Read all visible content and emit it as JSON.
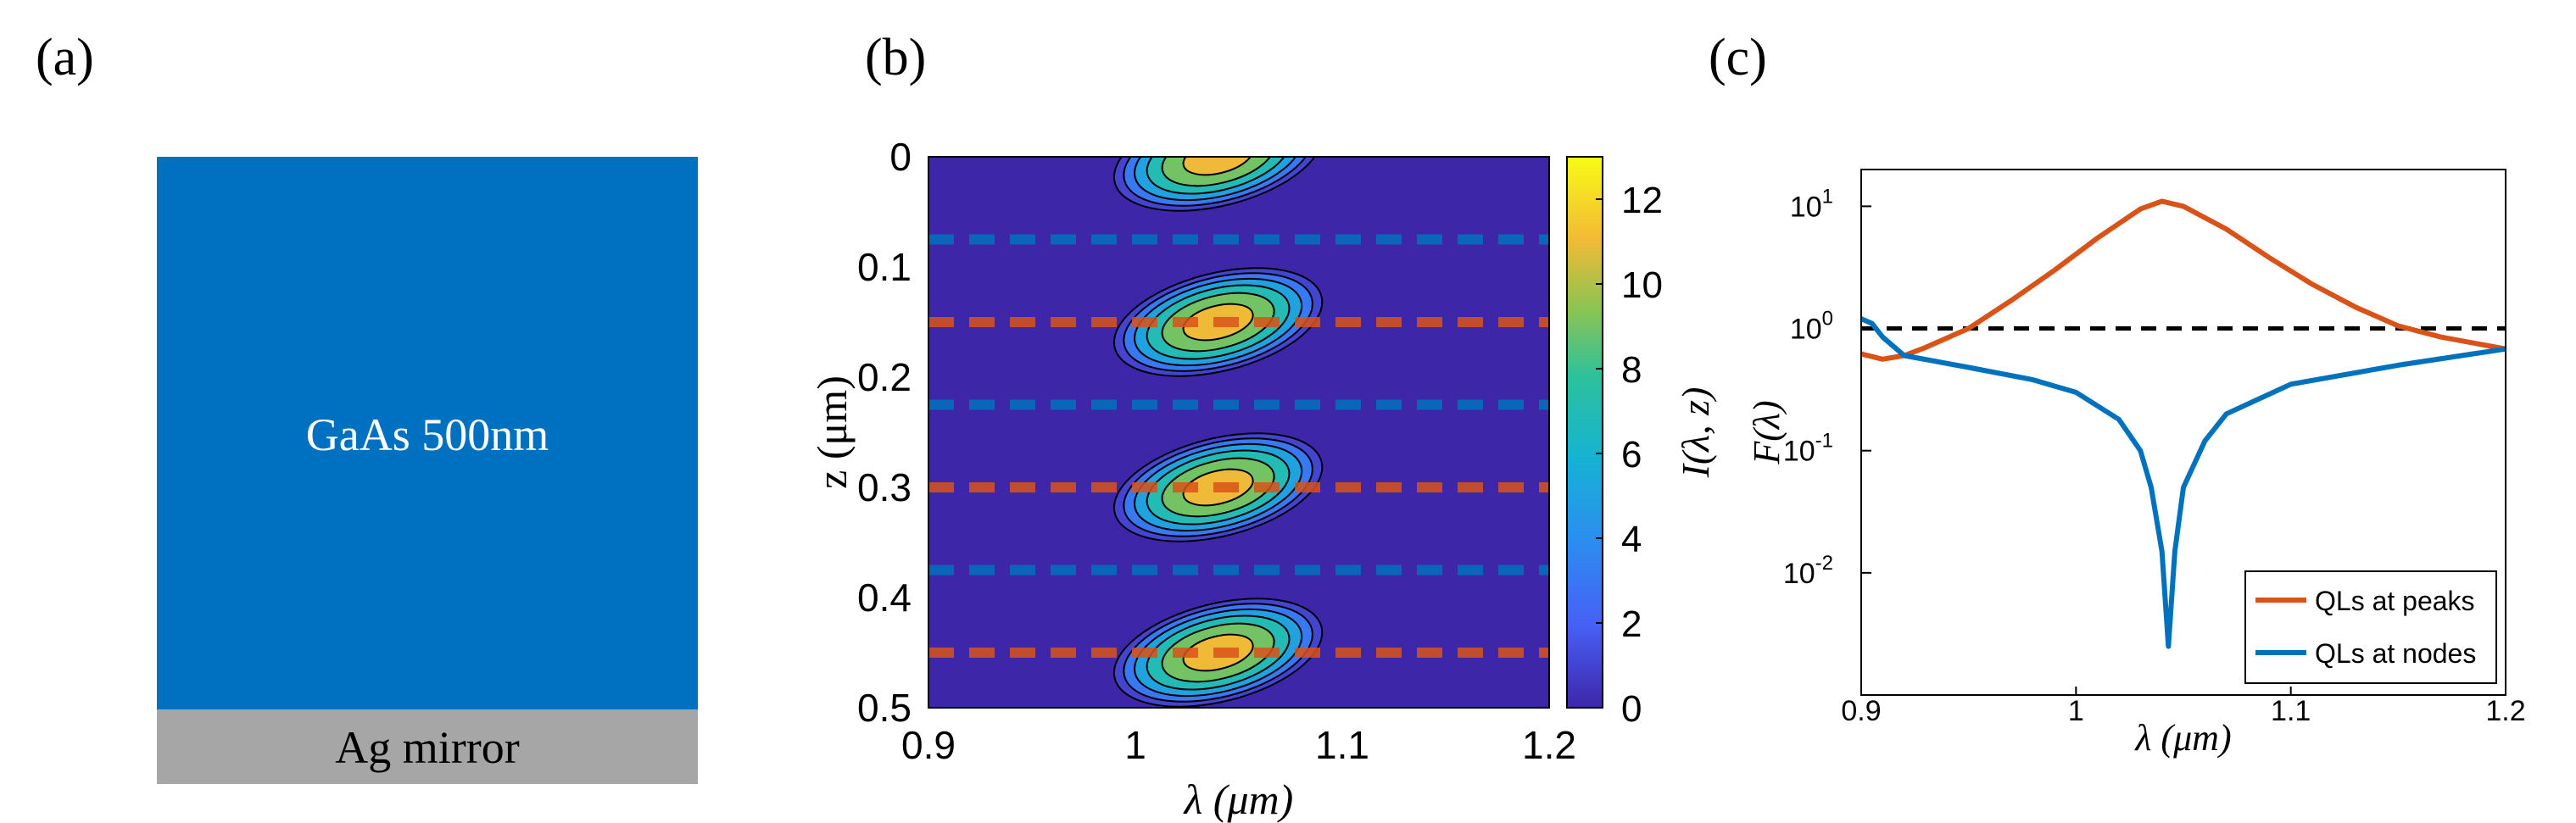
{
  "panels": {
    "a": {
      "label": "(a)",
      "layers": [
        {
          "name": "GaAs 500nm",
          "color": "#0070C0"
        },
        {
          "name": "Ag mirror",
          "color": "#A6A6A6"
        }
      ]
    },
    "b": {
      "label": "(b)",
      "chart_data": {
        "type": "heatmap",
        "xlabel": "λ (μm)",
        "ylabel": "z (μm)",
        "colorbar_label": "I(λ, z)",
        "xlim": [
          0.9,
          1.2
        ],
        "ylim": [
          0,
          0.5
        ],
        "y_reversed": true,
        "x_ticks": [
          "0.9",
          "1",
          "1.1",
          "1.2"
        ],
        "y_ticks": [
          "0",
          "0.1",
          "0.2",
          "0.3",
          "0.4",
          "0.5"
        ],
        "colorbar_ticks": [
          "0",
          "2",
          "4",
          "6",
          "8",
          "10",
          "12"
        ],
        "clim": [
          0,
          13
        ],
        "peak_wavelength": 1.04,
        "peak_value": 13,
        "intensity_peaks_z": [
          0,
          0.15,
          0.3,
          0.45
        ],
        "peak_lines_z": [
          0.15,
          0.3,
          0.45
        ],
        "node_lines_z": [
          0.075,
          0.225,
          0.375
        ],
        "peak_line_color": "#D95319",
        "node_line_color": "#0072BD",
        "contour_levels": [
          2,
          4,
          6,
          8,
          10,
          12
        ]
      }
    },
    "c": {
      "label": "(c)",
      "chart_data": {
        "type": "line",
        "xlabel": "λ (μm)",
        "ylabel": "F(λ)",
        "xlim": [
          0.9,
          1.2
        ],
        "ylim": [
          0.001,
          20
        ],
        "yscale": "log",
        "x_ticks": [
          "0.9",
          "1",
          "1.1",
          "1.2"
        ],
        "y_ticks": [
          {
            "base": "10",
            "exp": "-2",
            "value": 0.01
          },
          {
            "base": "10",
            "exp": "-1",
            "value": 0.1
          },
          {
            "base": "10",
            "exp": "0",
            "value": 1
          },
          {
            "base": "10",
            "exp": "1",
            "value": 10
          }
        ],
        "reference_line": {
          "y": 1,
          "style": "dashed",
          "color": "#000000"
        },
        "legend_position": "bottom-right",
        "series": [
          {
            "name": "QLs at peaks",
            "color": "#D95319",
            "x": [
              0.9,
              0.91,
              0.92,
              0.93,
              0.95,
              0.97,
              0.99,
              1.01,
              1.03,
              1.04,
              1.05,
              1.07,
              1.09,
              1.11,
              1.13,
              1.15,
              1.17,
              1.2
            ],
            "y": [
              0.62,
              0.56,
              0.6,
              0.7,
              1.0,
              1.7,
              3.0,
              5.5,
              9.5,
              11.0,
              10.0,
              6.5,
              3.8,
              2.3,
              1.5,
              1.05,
              0.85,
              0.68
            ]
          },
          {
            "name": "QLs at nodes",
            "color": "#0072BD",
            "x": [
              0.9,
              0.905,
              0.91,
              0.92,
              0.95,
              0.98,
              1.0,
              1.02,
              1.03,
              1.035,
              1.04,
              1.043,
              1.046,
              1.05,
              1.06,
              1.07,
              1.1,
              1.15,
              1.2
            ],
            "y": [
              1.2,
              1.1,
              0.85,
              0.6,
              0.48,
              0.38,
              0.3,
              0.18,
              0.1,
              0.05,
              0.015,
              0.0025,
              0.015,
              0.05,
              0.12,
              0.2,
              0.35,
              0.5,
              0.68
            ]
          }
        ]
      }
    }
  }
}
